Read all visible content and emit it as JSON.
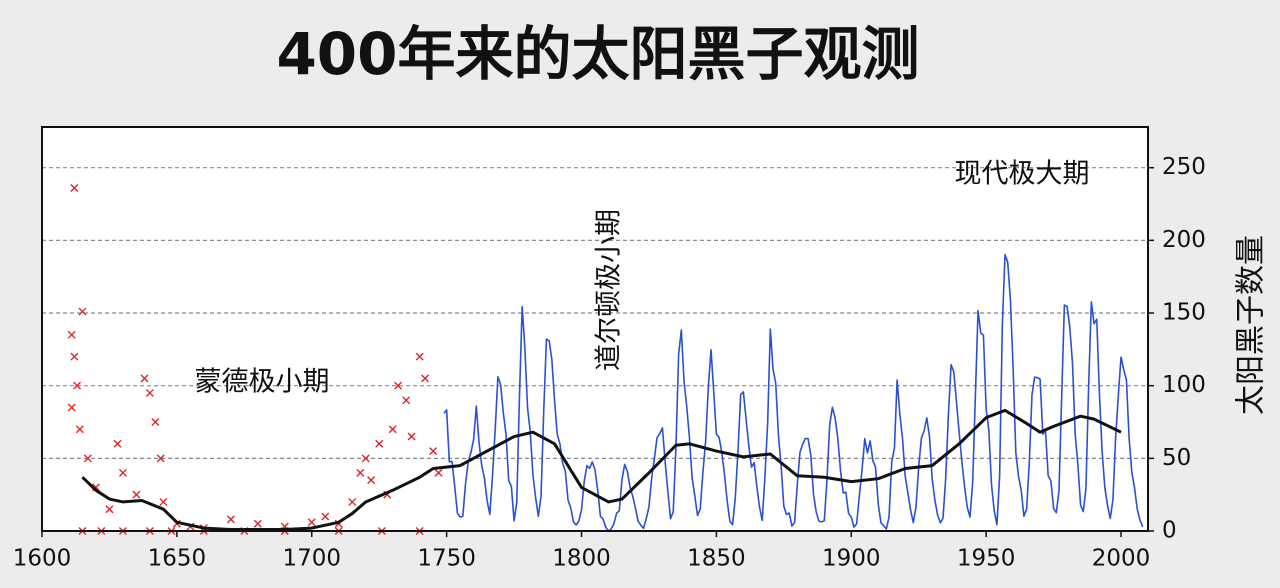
{
  "chart_data": {
    "type": "line",
    "title": "400年来的太阳黑子观测",
    "y_label": "太阳黑子数量",
    "annotations": [
      "蒙德极小期",
      "道尔顿极小期",
      "现代极大期"
    ],
    "xlim": [
      1600,
      2010
    ],
    "xticks": [
      1600,
      1650,
      1700,
      1750,
      1800,
      1850,
      1900,
      1950,
      2000
    ],
    "ylim": [
      0,
      278
    ],
    "yticks": [
      0,
      50,
      100,
      150,
      200,
      250
    ],
    "grid": true,
    "series": [
      {
        "type": "scatter",
        "color": "#e02424",
        "x": [
          1612,
          1615,
          1611,
          1612,
          1613,
          1611,
          1614,
          1617,
          1620,
          1625,
          1628,
          1630,
          1635,
          1638,
          1640,
          1642,
          1644,
          1645,
          1650,
          1655,
          1660,
          1670,
          1680,
          1690,
          1700,
          1705,
          1710,
          1715,
          1718,
          1720,
          1722,
          1725,
          1728,
          1730,
          1732,
          1735,
          1737,
          1740,
          1742,
          1745,
          1747,
          1615,
          1622,
          1630,
          1640,
          1648,
          1660,
          1675,
          1690,
          1710,
          1726,
          1740
        ],
        "values": [
          236,
          151,
          135,
          120,
          100,
          85,
          70,
          50,
          30,
          15,
          60,
          40,
          25,
          105,
          95,
          75,
          50,
          20,
          5,
          3,
          2,
          8,
          5,
          3,
          6,
          10,
          5,
          20,
          40,
          50,
          35,
          60,
          25,
          70,
          100,
          90,
          65,
          120,
          105,
          55,
          40,
          0,
          0,
          0,
          0,
          0,
          0,
          0,
          0,
          0,
          0,
          0
        ]
      },
      {
        "type": "line",
        "color": "#2b4fd6",
        "x": [
          1749,
          1750,
          1751,
          1752,
          1753,
          1754,
          1755,
          1756,
          1757,
          1758,
          1759,
          1760,
          1761,
          1762,
          1763,
          1764,
          1765,
          1766,
          1767,
          1768,
          1769,
          1770,
          1771,
          1772,
          1773,
          1774,
          1775,
          1776,
          1777,
          1778,
          1779,
          1780,
          1781,
          1782,
          1783,
          1784,
          1785,
          1786,
          1787,
          1788,
          1789,
          1790,
          1791,
          1792,
          1793,
          1794,
          1795,
          1796,
          1797,
          1798,
          1799,
          1800,
          1801,
          1802,
          1803,
          1804,
          1805,
          1806,
          1807,
          1808,
          1809,
          1810,
          1811,
          1812,
          1813,
          1814,
          1815,
          1816,
          1817,
          1818,
          1819,
          1820,
          1821,
          1822,
          1823,
          1824,
          1825,
          1826,
          1827,
          1828,
          1829,
          1830,
          1831,
          1832,
          1833,
          1834,
          1835,
          1836,
          1837,
          1838,
          1839,
          1840,
          1841,
          1842,
          1843,
          1844,
          1845,
          1846,
          1847,
          1848,
          1849,
          1850,
          1851,
          1852,
          1853,
          1854,
          1855,
          1856,
          1857,
          1858,
          1859,
          1860,
          1861,
          1862,
          1863,
          1864,
          1865,
          1866,
          1867,
          1868,
          1869,
          1870,
          1871,
          1872,
          1873,
          1874,
          1875,
          1876,
          1877,
          1878,
          1879,
          1880,
          1881,
          1882,
          1883,
          1884,
          1885,
          1886,
          1887,
          1888,
          1889,
          1890,
          1891,
          1892,
          1893,
          1894,
          1895,
          1896,
          1897,
          1898,
          1899,
          1900,
          1901,
          1902,
          1903,
          1904,
          1905,
          1906,
          1907,
          1908,
          1909,
          1910,
          1911,
          1912,
          1913,
          1914,
          1915,
          1916,
          1917,
          1918,
          1919,
          1920,
          1921,
          1922,
          1923,
          1924,
          1925,
          1926,
          1927,
          1928,
          1929,
          1930,
          1931,
          1932,
          1933,
          1934,
          1935,
          1936,
          1937,
          1938,
          1939,
          1940,
          1941,
          1942,
          1943,
          1944,
          1945,
          1946,
          1947,
          1948,
          1949,
          1950,
          1951,
          1952,
          1953,
          1954,
          1955,
          1956,
          1957,
          1958,
          1959,
          1960,
          1961,
          1962,
          1963,
          1964,
          1965,
          1966,
          1967,
          1968,
          1969,
          1970,
          1971,
          1972,
          1973,
          1974,
          1975,
          1976,
          1977,
          1978,
          1979,
          1980,
          1981,
          1982,
          1983,
          1984,
          1985,
          1986,
          1987,
          1988,
          1989,
          1990,
          1991,
          1992,
          1993,
          1994,
          1995,
          1996,
          1997,
          1998,
          1999,
          2000,
          2001,
          2002,
          2003,
          2004,
          2005,
          2006,
          2007,
          2008
        ],
        "values": [
          80.9,
          83.4,
          47.7,
          47.8,
          30.7,
          12.2,
          9.6,
          10.2,
          32.4,
          47.6,
          54.0,
          62.9,
          85.9,
          61.2,
          45.1,
          36.4,
          20.9,
          11.4,
          37.8,
          69.8,
          106.1,
          100.8,
          81.6,
          66.5,
          34.8,
          30.6,
          7.0,
          19.8,
          92.5,
          154.4,
          125.9,
          84.8,
          68.1,
          38.5,
          22.8,
          10.2,
          24.1,
          82.9,
          132.0,
          130.9,
          118.1,
          89.9,
          66.6,
          60.0,
          46.9,
          41.0,
          21.3,
          16.0,
          6.4,
          4.1,
          6.8,
          14.5,
          34.0,
          45.0,
          43.1,
          47.5,
          42.2,
          28.1,
          10.1,
          8.1,
          2.5,
          0.0,
          1.4,
          5.0,
          12.2,
          13.9,
          35.4,
          45.8,
          41.0,
          30.1,
          23.9,
          15.6,
          6.6,
          4.0,
          1.8,
          8.5,
          16.6,
          36.3,
          49.6,
          64.2,
          67.0,
          70.9,
          47.8,
          27.5,
          8.5,
          13.2,
          56.9,
          121.5,
          138.3,
          103.2,
          85.7,
          64.6,
          36.7,
          24.2,
          10.7,
          15.0,
          40.1,
          61.5,
          98.5,
          124.7,
          96.3,
          66.6,
          64.5,
          54.1,
          39.0,
          20.6,
          6.7,
          4.3,
          22.7,
          54.8,
          93.8,
          95.8,
          77.2,
          59.1,
          44.0,
          47.0,
          30.5,
          16.3,
          7.3,
          37.6,
          74.0,
          139.0,
          111.2,
          101.6,
          66.2,
          44.7,
          17.0,
          11.3,
          12.4,
          3.4,
          6.0,
          32.3,
          54.3,
          59.7,
          63.7,
          63.5,
          52.2,
          25.4,
          13.1,
          6.8,
          6.3,
          7.1,
          35.6,
          73.0,
          85.1,
          78.0,
          64.0,
          41.8,
          26.2,
          26.7,
          12.1,
          9.5,
          2.7,
          5.0,
          24.4,
          42.0,
          63.5,
          53.8,
          62.0,
          48.5,
          43.9,
          18.6,
          5.7,
          3.6,
          1.4,
          9.6,
          47.4,
          57.1,
          103.9,
          80.6,
          63.6,
          37.6,
          26.1,
          14.2,
          5.8,
          16.7,
          44.3,
          63.9,
          69.0,
          77.8,
          64.9,
          35.7,
          21.2,
          11.1,
          5.7,
          8.7,
          36.1,
          79.7,
          114.4,
          109.6,
          88.8,
          67.8,
          47.5,
          30.6,
          16.3,
          9.6,
          33.2,
          92.6,
          151.6,
          136.3,
          134.7,
          83.9,
          69.4,
          31.5,
          13.9,
          4.4,
          38.0,
          141.7,
          190.2,
          184.8,
          159.0,
          112.3,
          53.9,
          37.6,
          27.9,
          10.2,
          15.1,
          47.0,
          93.8,
          105.9,
          105.5,
          104.5,
          66.6,
          68.9,
          38.0,
          34.5,
          15.5,
          12.6,
          27.5,
          92.5,
          155.4,
          154.6,
          140.4,
          115.9,
          66.6,
          45.9,
          17.9,
          13.4,
          29.4,
          100.2,
          157.6,
          142.6,
          145.7,
          94.3,
          54.6,
          29.9,
          17.5,
          8.6,
          21.5,
          64.3,
          93.3,
          119.6,
          111.0,
          104.0,
          63.7,
          40.4,
          29.8,
          15.2,
          7.5,
          2.9
        ]
      },
      {
        "type": "line",
        "color": "#111111",
        "width": 3,
        "x": [
          1615,
          1620,
          1625,
          1630,
          1637,
          1645,
          1650,
          1660,
          1670,
          1680,
          1690,
          1700,
          1710,
          1715,
          1720,
          1730,
          1740,
          1745,
          1755,
          1765,
          1775,
          1782,
          1790,
          1800,
          1810,
          1815,
          1825,
          1835,
          1840,
          1850,
          1860,
          1870,
          1880,
          1890,
          1900,
          1910,
          1920,
          1930,
          1940,
          1950,
          1957,
          1965,
          1970,
          1975,
          1985,
          1990,
          2000
        ],
        "values": [
          37,
          28,
          22,
          20,
          21,
          15,
          6,
          2,
          1,
          1,
          1,
          2,
          6,
          12,
          20,
          28,
          37,
          43,
          45,
          55,
          65,
          68,
          60,
          30,
          20,
          22,
          40,
          59,
          60,
          55,
          51,
          53,
          38,
          37,
          34,
          36,
          43,
          45,
          60,
          78,
          83,
          74,
          68,
          72,
          79,
          77,
          68
        ]
      }
    ]
  }
}
